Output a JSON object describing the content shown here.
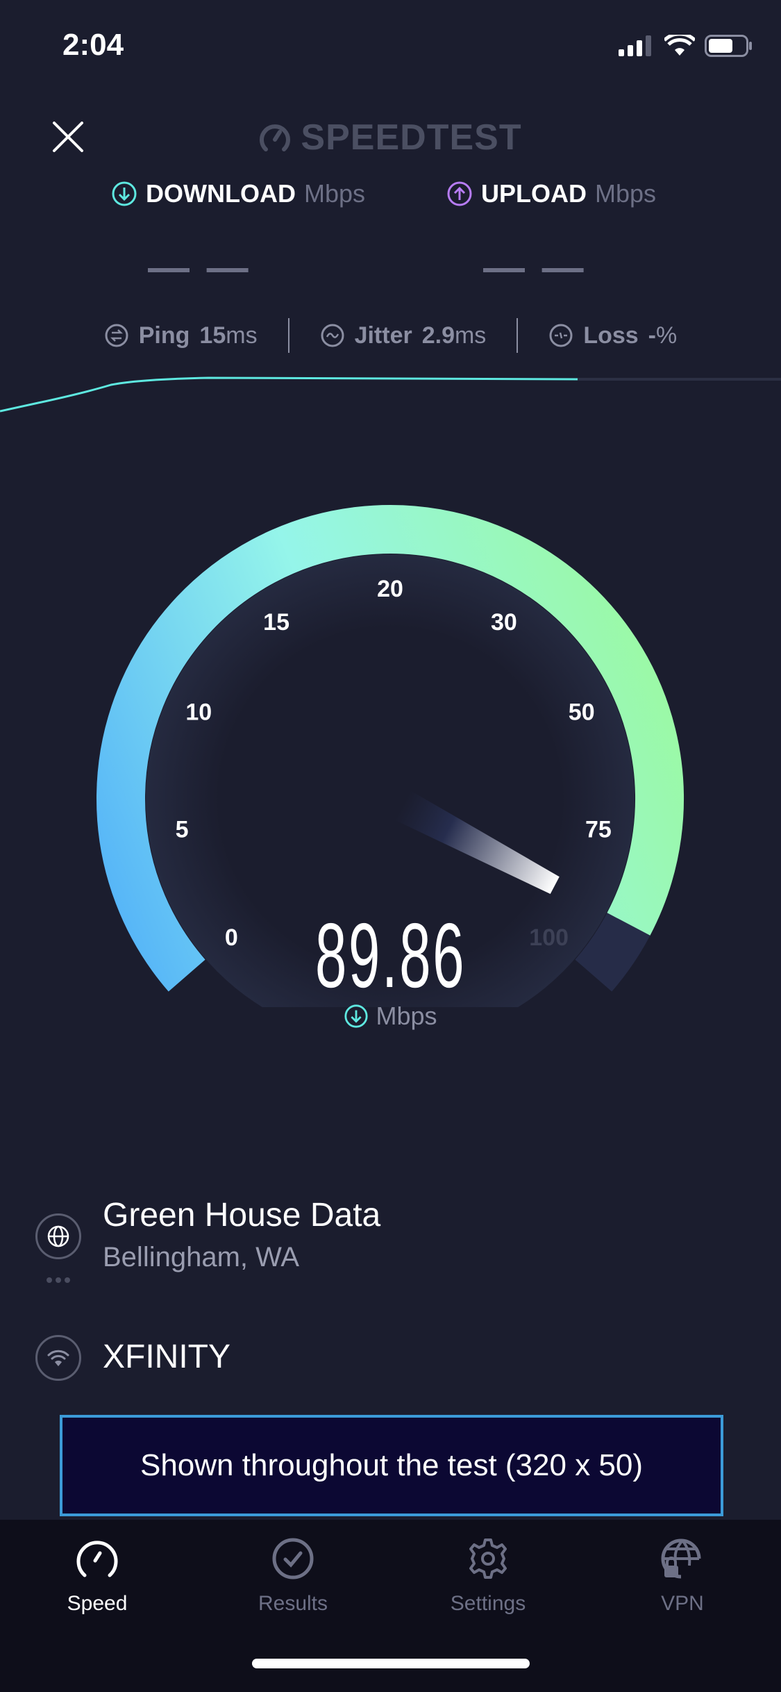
{
  "status_bar": {
    "time": "2:04"
  },
  "header": {
    "logo": "SPEEDTEST",
    "close_icon": "close-icon"
  },
  "download": {
    "label": "DOWNLOAD",
    "unit": "Mbps",
    "value": "— —",
    "color": "#5ee8e0"
  },
  "upload": {
    "label": "UPLOAD",
    "unit": "Mbps",
    "value": "— —",
    "color": "#b77cf5"
  },
  "metrics": {
    "ping": {
      "label": "Ping",
      "value": "15",
      "unit": "ms"
    },
    "jitter": {
      "label": "Jitter",
      "value": "2.9",
      "unit": "ms"
    },
    "loss": {
      "label": "Loss",
      "value": "-",
      "unit": "%"
    }
  },
  "gauge": {
    "ticks": [
      "0",
      "5",
      "10",
      "15",
      "20",
      "30",
      "50",
      "75",
      "100"
    ],
    "value": "89.86",
    "numeric_value": 89.86,
    "unit": "Mbps",
    "colors": {
      "start": "#55b4f8",
      "mid": "#95f5ea",
      "end": "#9bf9a6",
      "track": "#262c48"
    }
  },
  "server": {
    "name": "Green House Data",
    "location": "Bellingham, WA"
  },
  "isp": {
    "name": "XFINITY"
  },
  "ad": {
    "text": "Shown throughout the test (320 x 50)"
  },
  "tabs": [
    {
      "label": "Speed",
      "icon": "speedometer-icon",
      "active": true
    },
    {
      "label": "Results",
      "icon": "check-circle-icon",
      "active": false
    },
    {
      "label": "Settings",
      "icon": "gear-icon",
      "active": false
    },
    {
      "label": "VPN",
      "icon": "globe-lock-icon",
      "active": false
    }
  ]
}
